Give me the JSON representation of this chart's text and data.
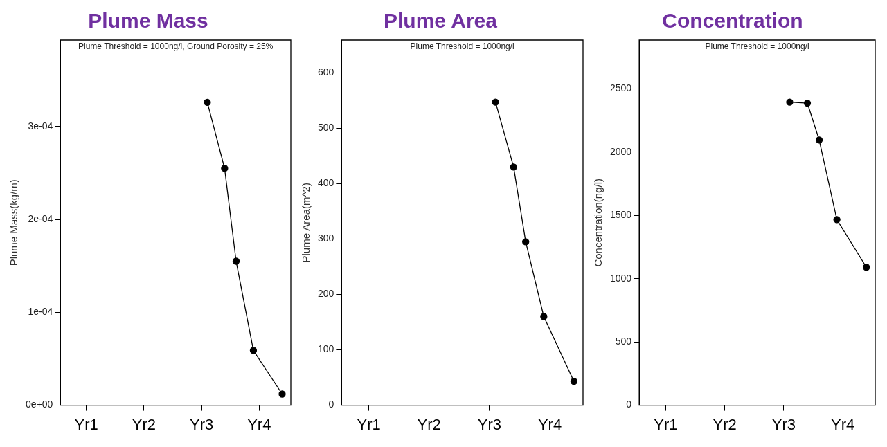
{
  "chart_data": [
    {
      "type": "line",
      "title": "Plume Mass",
      "subtitle": "Plume Threshold = 1000ng/l, Ground Porosity = 25%",
      "ylabel": "Plume Mass(kg/m)",
      "categories": [
        null,
        null,
        null,
        null,
        "Yr1",
        null,
        null,
        null,
        null,
        null,
        null,
        null,
        null,
        null,
        "Yr2",
        null,
        null,
        null,
        null,
        null,
        null,
        null,
        null,
        null,
        "Yr3",
        null,
        null,
        null,
        null,
        null,
        null,
        null,
        null,
        null,
        "Yr4",
        null,
        null,
        null,
        null,
        null
      ],
      "ylim": [
        0,
        0.000393
      ],
      "yticks": [
        {
          "value": 0,
          "label": "0e+00"
        },
        {
          "value": 0.0001,
          "label": "1e-04"
        },
        {
          "value": 0.0002,
          "label": "2e-04"
        },
        {
          "value": 0.0003,
          "label": "3e-04"
        }
      ],
      "series": [
        {
          "color": "#000000",
          "values": [
            null,
            null,
            null,
            null,
            null,
            null,
            null,
            null,
            null,
            null,
            null,
            null,
            null,
            null,
            null,
            null,
            null,
            null,
            null,
            null,
            null,
            null,
            null,
            null,
            null,
            0.000326,
            null,
            null,
            0.000255,
            null,
            0.000155,
            null,
            null,
            5.9e-05,
            null,
            null,
            null,
            null,
            1.2e-05,
            null
          ]
        }
      ],
      "marker": "circle",
      "line_style": "solid"
    },
    {
      "type": "line",
      "title": "Plume Area",
      "subtitle": "Plume Threshold = 1000ng/l",
      "ylabel": "Plume Area(m^2)",
      "categories": [
        null,
        null,
        null,
        null,
        "Yr1",
        null,
        null,
        null,
        null,
        null,
        null,
        null,
        null,
        null,
        "Yr2",
        null,
        null,
        null,
        null,
        null,
        null,
        null,
        null,
        null,
        "Yr3",
        null,
        null,
        null,
        null,
        null,
        null,
        null,
        null,
        null,
        "Yr4",
        null,
        null,
        null,
        null,
        null
      ],
      "ylim": [
        0,
        659
      ],
      "yticks": [
        0,
        100,
        200,
        300,
        400,
        500,
        600
      ],
      "series": [
        {
          "color": "#000000",
          "values": [
            null,
            null,
            null,
            null,
            null,
            null,
            null,
            null,
            null,
            null,
            null,
            null,
            null,
            null,
            null,
            null,
            null,
            null,
            null,
            null,
            null,
            null,
            null,
            null,
            null,
            547,
            null,
            null,
            430,
            null,
            295,
            null,
            null,
            160,
            null,
            null,
            null,
            null,
            43,
            null
          ]
        }
      ],
      "marker": "circle",
      "line_style": "solid"
    },
    {
      "type": "line",
      "title": "Concentration",
      "subtitle": "Plume Threshold = 1000ng/l",
      "ylabel": "Concentration(ng/l)",
      "categories": [
        null,
        null,
        null,
        null,
        "Yr1",
        null,
        null,
        null,
        null,
        null,
        null,
        null,
        null,
        null,
        "Yr2",
        null,
        null,
        null,
        null,
        null,
        null,
        null,
        null,
        null,
        "Yr3",
        null,
        null,
        null,
        null,
        null,
        null,
        null,
        null,
        null,
        "Yr4",
        null,
        null,
        null,
        null,
        null
      ],
      "ylim": [
        0,
        2885
      ],
      "yticks": [
        0,
        500,
        1000,
        1500,
        2000,
        2500
      ],
      "series": [
        {
          "color": "#000000",
          "values": [
            null,
            null,
            null,
            null,
            null,
            null,
            null,
            null,
            null,
            null,
            null,
            null,
            null,
            null,
            null,
            null,
            null,
            null,
            null,
            null,
            null,
            null,
            null,
            null,
            null,
            2395,
            null,
            null,
            2387,
            null,
            2096,
            null,
            null,
            1467,
            null,
            null,
            null,
            null,
            1090,
            null
          ]
        }
      ],
      "marker": "circle",
      "line_style": "solid"
    }
  ]
}
